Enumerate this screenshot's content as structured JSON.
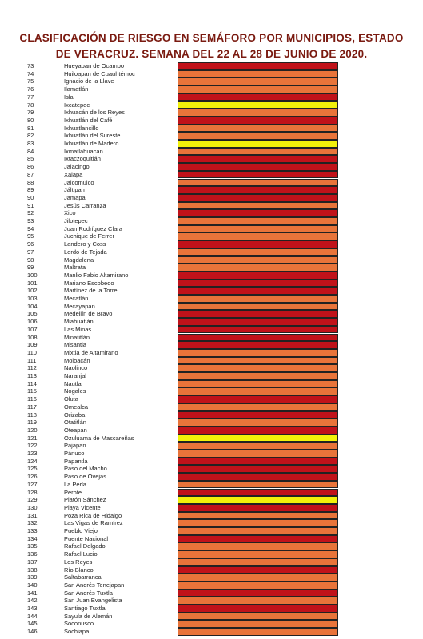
{
  "header": {
    "title_lines": [
      "CLASIFICACIÓN DE RIESGO EN SEMÁFORO POR MUNICIPIOS, ESTADO",
      "DE VERACRUZ. SEMANA DEL 22 AL 28 DE JUNIO DE 2020."
    ]
  },
  "table": {
    "rows": [
      [
        73,
        "Hueyapan de Ocampo",
        "#c0121a"
      ],
      [
        74,
        "Huiloapan de Cuauhtémoc",
        "#e8743a"
      ],
      [
        75,
        "Ignacio de la Llave",
        "#e8743a"
      ],
      [
        76,
        "Ilamatlán",
        "#e8743a"
      ],
      [
        77,
        "Isla",
        "#c0121a"
      ],
      [
        78,
        "Ixcatepec",
        "#f2f20a"
      ],
      [
        79,
        "Ixhuacán de los Reyes",
        "#e8743a"
      ],
      [
        80,
        "Ixhuatlán del Café",
        "#c0121a"
      ],
      [
        81,
        "Ixhuatlancillo",
        "#e8743a"
      ],
      [
        82,
        "Ixhuatlán del Sureste",
        "#e8743a"
      ],
      [
        83,
        "Ixhuatlán de Madero",
        "#f2f20a"
      ],
      [
        84,
        "Ixmatlahuacan",
        "#e8743a"
      ],
      [
        85,
        "Ixtaczoquitlán",
        "#c0121a"
      ],
      [
        86,
        "Jalacingo",
        "#c0121a"
      ],
      [
        87,
        "Xalapa",
        "#c0121a"
      ],
      [
        88,
        "Jalcomulco",
        "#e8743a"
      ],
      [
        89,
        "Jáltipan",
        "#c0121a"
      ],
      [
        90,
        "Jamapa",
        "#c0121a"
      ],
      [
        91,
        "Jesús Carranza",
        "#e8743a"
      ],
      [
        92,
        "Xico",
        "#c0121a"
      ],
      [
        93,
        "Jilotepec",
        "#e8743a"
      ],
      [
        94,
        "Juan Rodríguez Clara",
        "#e8743a"
      ],
      [
        95,
        "Juchique de Ferrer",
        "#e8743a"
      ],
      [
        96,
        "Landero y Coss",
        "#c0121a"
      ],
      [
        97,
        "Lerdo de Tejada",
        "#e8743a"
      ],
      [
        98,
        "Magdalena",
        "#e8743a"
      ],
      [
        99,
        "Maltrata",
        "#e8743a"
      ],
      [
        100,
        "Manlio Fabio Altamirano",
        "#c0121a"
      ],
      [
        101,
        "Mariano Escobedo",
        "#c0121a"
      ],
      [
        102,
        "Martínez de la Torre",
        "#c0121a"
      ],
      [
        103,
        "Mecatlán",
        "#e8743a"
      ],
      [
        104,
        "Mecayapan",
        "#e8743a"
      ],
      [
        105,
        "Medellín de Bravo",
        "#c0121a"
      ],
      [
        106,
        "Miahuatlán",
        "#c0121a"
      ],
      [
        107,
        "Las Minas",
        "#c0121a"
      ],
      [
        108,
        "Minatitlán",
        "#c0121a"
      ],
      [
        109,
        "Misantla",
        "#c0121a"
      ],
      [
        110,
        "Mixtla de Altamirano",
        "#e8743a"
      ],
      [
        111,
        "Moloacán",
        "#e8743a"
      ],
      [
        112,
        "Naolinco",
        "#e8743a"
      ],
      [
        113,
        "Naranjal",
        "#e8743a"
      ],
      [
        114,
        "Nautla",
        "#e8743a"
      ],
      [
        115,
        "Nogales",
        "#e8743a"
      ],
      [
        116,
        "Oluta",
        "#c0121a"
      ],
      [
        117,
        "Omealca",
        "#e8743a"
      ],
      [
        118,
        "Orizaba",
        "#c0121a"
      ],
      [
        119,
        "Otatitlán",
        "#e8743a"
      ],
      [
        120,
        "Oteapan",
        "#c0121a"
      ],
      [
        121,
        "Ozuluama de Mascareñas",
        "#f2f20a"
      ],
      [
        122,
        "Pajapan",
        "#e8743a"
      ],
      [
        123,
        "Pánuco",
        "#e8743a"
      ],
      [
        124,
        "Papantla",
        "#c0121a"
      ],
      [
        125,
        "Paso del Macho",
        "#c0121a"
      ],
      [
        126,
        "Paso de Ovejas",
        "#c0121a"
      ],
      [
        127,
        "La Perla",
        "#e8743a"
      ],
      [
        128,
        "Perote",
        "#c0121a"
      ],
      [
        129,
        "Platón Sánchez",
        "#f2f20a"
      ],
      [
        130,
        "Playa Vicente",
        "#c0121a"
      ],
      [
        131,
        "Poza Rica de Hidalgo",
        "#e8743a"
      ],
      [
        132,
        "Las Vigas de Ramírez",
        "#e8743a"
      ],
      [
        133,
        "Pueblo Viejo",
        "#e8743a"
      ],
      [
        134,
        "Puente Nacional",
        "#c0121a"
      ],
      [
        135,
        "Rafael Delgado",
        "#e8743a"
      ],
      [
        136,
        "Rafael Lucio",
        "#e8743a"
      ],
      [
        137,
        "Los Reyes",
        "#e8743a"
      ],
      [
        138,
        "Río Blanco",
        "#c0121a"
      ],
      [
        139,
        "Saltabarranca",
        "#e8743a"
      ],
      [
        140,
        "San Andrés Tenejapan",
        "#e8743a"
      ],
      [
        141,
        "San Andrés Tuxtla",
        "#c0121a"
      ],
      [
        142,
        "San Juan Evangelista",
        "#e8743a"
      ],
      [
        143,
        "Santiago Tuxtla",
        "#c0121a"
      ],
      [
        144,
        "Sayula de Alemán",
        "#e8743a"
      ],
      [
        145,
        "Soconusco",
        "#e8743a"
      ],
      [
        146,
        "Sochiapa",
        "#e8743a"
      ]
    ]
  }
}
